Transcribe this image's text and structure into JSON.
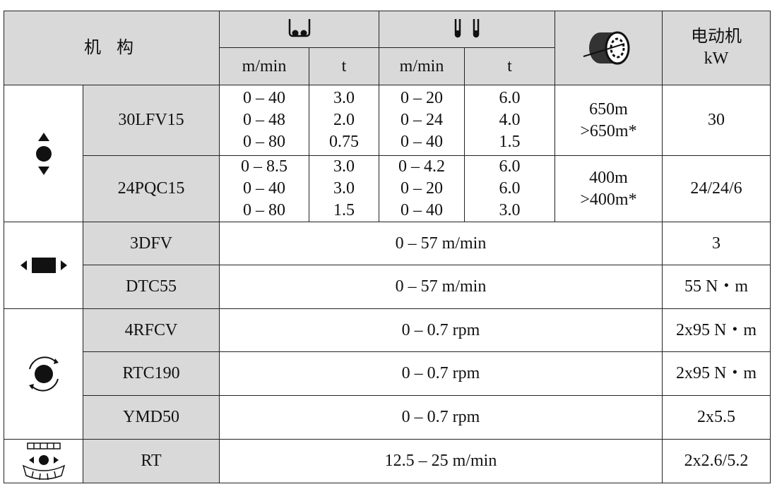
{
  "header": {
    "mechanism": "机 构",
    "columns": [
      "m/min",
      "t",
      "m/min",
      "t"
    ],
    "motor": [
      "电动机",
      "kW"
    ]
  },
  "groups": [
    {
      "rows": [
        {
          "name": "30LFV15",
          "speed1": [
            "0 – 40",
            "0 – 48",
            "0 – 80"
          ],
          "load1": [
            "3.0",
            "2.0",
            "0.75"
          ],
          "speed2": [
            "0 – 20",
            "0 – 24",
            "0 – 40"
          ],
          "load2": [
            "6.0",
            "4.0",
            "1.5"
          ],
          "rope": [
            "650m",
            ">650m*"
          ],
          "motor": "30"
        },
        {
          "name": "24PQC15",
          "speed1": [
            "0 – 8.5",
            "0 – 40",
            "0 – 80"
          ],
          "load1": [
            "3.0",
            "3.0",
            "1.5"
          ],
          "speed2": [
            "0 – 4.2",
            "0 – 20",
            "0 – 40"
          ],
          "load2": [
            "6.0",
            "6.0",
            "3.0"
          ],
          "rope": [
            "400m",
            ">400m*"
          ],
          "motor": "24/24/6"
        }
      ]
    },
    {
      "rows": [
        {
          "name": "3DFV",
          "range": "0 – 57 m/min",
          "motor": "3"
        },
        {
          "name": "DTC55",
          "range": "0 – 57 m/min",
          "motor": "55 N・m"
        }
      ]
    },
    {
      "rows": [
        {
          "name": "4RFCV",
          "range": "0 – 0.7 rpm",
          "motor": "2x95 N・m"
        },
        {
          "name": "RTC190",
          "range": "0 – 0.7 rpm",
          "motor": "2x95 N・m"
        },
        {
          "name": "YMD50",
          "range": "0 – 0.7 rpm",
          "motor": "2x5.5"
        }
      ]
    },
    {
      "rows": [
        {
          "name": "RT",
          "range": "12.5 – 25 m/min",
          "motor": "2x2.6/5.2"
        }
      ]
    }
  ]
}
